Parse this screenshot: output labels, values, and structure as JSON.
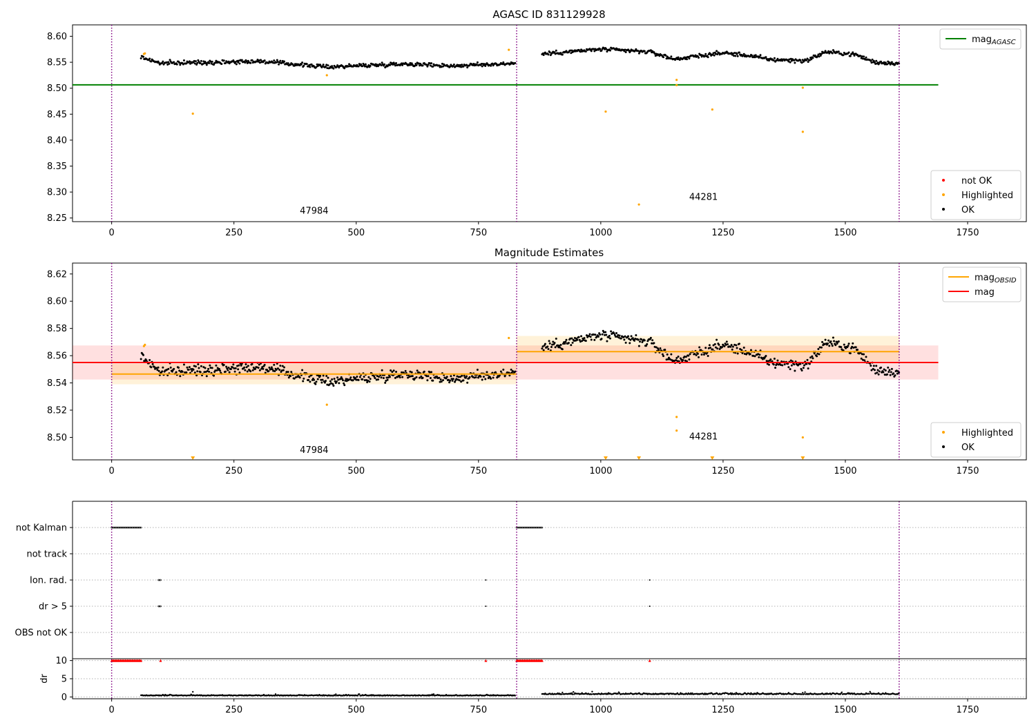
{
  "chart_data": [
    {
      "type": "scatter",
      "title": "AGASC ID 831129928",
      "xlabel": "",
      "ylabel": "",
      "xlim": [
        -80,
        1870
      ],
      "ylim": [
        8.243,
        8.622
      ],
      "xticks": [
        0,
        250,
        500,
        750,
        1000,
        1250,
        1500,
        1750
      ],
      "xtick_labels": [
        "0",
        "250",
        "500",
        "750",
        "1000",
        "1250",
        "1500",
        "1750"
      ],
      "yticks": [
        8.25,
        8.3,
        8.35,
        8.4,
        8.45,
        8.5,
        8.55,
        8.6
      ],
      "ytick_labels": [
        "8.25",
        "8.30",
        "8.35",
        "8.40",
        "8.45",
        "8.50",
        "8.55",
        "8.60"
      ],
      "grid": false,
      "obsid_boundaries": [
        0,
        828,
        1610
      ],
      "obsid_labels": [
        {
          "text": "47984",
          "x": 414,
          "y": 8.258
        },
        {
          "text": "44281",
          "x": 1210,
          "y": 8.285
        }
      ],
      "lines": [
        {
          "name": "mag",
          "name_sub": "AGASC",
          "y": 8.5065,
          "x": [
            -80,
            1690
          ],
          "color": "#008000"
        }
      ],
      "series": [
        {
          "name": "OK",
          "color": "#000000",
          "segments": [
            {
              "x0": 60,
              "x1": 825,
              "step": 1.6,
              "base": 8.548,
              "amp": 0.007,
              "drift": [
                [
                  60,
                  8.56
                ],
                [
                  100,
                  8.548
                ],
                [
                  300,
                  8.552
                ],
                [
                  440,
                  8.541
                ],
                [
                  600,
                  8.547
                ],
                [
                  700,
                  8.543
                ],
                [
                  825,
                  8.548
                ]
              ]
            },
            {
              "x0": 880,
              "x1": 1610,
              "step": 1.6,
              "base": 8.565,
              "amp": 0.007,
              "drift": [
                [
                  880,
                  8.566
                ],
                [
                  1000,
                  8.575
                ],
                [
                  1100,
                  8.57
                ],
                [
                  1150,
                  8.556
                ],
                [
                  1250,
                  8.568
                ],
                [
                  1300,
                  8.563
                ],
                [
                  1350,
                  8.555
                ],
                [
                  1420,
                  8.553
                ],
                [
                  1460,
                  8.57
                ],
                [
                  1520,
                  8.565
                ],
                [
                  1560,
                  8.55
                ],
                [
                  1610,
                  8.548
                ]
              ]
            }
          ]
        },
        {
          "name": "Highlighted",
          "color": "#ffa500",
          "points": [
            [
              66,
              8.566
            ],
            [
              68,
              8.567
            ],
            [
              166,
              8.451
            ],
            [
              440,
              8.525
            ],
            [
              812,
              8.574
            ],
            [
              1010,
              8.455
            ],
            [
              1078,
              8.276
            ],
            [
              1155,
              8.516
            ],
            [
              1155,
              8.506
            ],
            [
              1228,
              8.459
            ],
            [
              1413,
              8.501
            ],
            [
              1413,
              8.416
            ]
          ]
        },
        {
          "name": "not OK",
          "color": "#ff0000",
          "points": []
        }
      ],
      "legends": [
        {
          "position": "upper-right",
          "entries": [
            {
              "kind": "line",
              "label": "mag",
              "sub": "AGASC",
              "color": "#008000"
            }
          ]
        },
        {
          "position": "lower-right",
          "entries": [
            {
              "kind": "dot",
              "label": "not OK",
              "color": "#ff0000"
            },
            {
              "kind": "dot",
              "label": "Highlighted",
              "color": "#ffa500"
            },
            {
              "kind": "dot",
              "label": "OK",
              "color": "#000000"
            }
          ]
        }
      ]
    },
    {
      "type": "scatter",
      "title": "Magnitude Estimates",
      "xlabel": "",
      "ylabel": "",
      "xlim": [
        -80,
        1870
      ],
      "ylim": [
        8.4835,
        8.628
      ],
      "xticks": [
        0,
        250,
        500,
        750,
        1000,
        1250,
        1500,
        1750
      ],
      "xtick_labels": [
        "0",
        "250",
        "500",
        "750",
        "1000",
        "1250",
        "1500",
        "1750"
      ],
      "yticks": [
        8.5,
        8.52,
        8.54,
        8.56,
        8.58,
        8.6,
        8.62
      ],
      "ytick_labels": [
        "8.50",
        "8.52",
        "8.54",
        "8.56",
        "8.58",
        "8.60",
        "8.62"
      ],
      "grid": false,
      "obsid_boundaries": [
        0,
        828,
        1610
      ],
      "obsid_labels": [
        {
          "text": "47984",
          "x": 414,
          "y": 8.4885
        },
        {
          "text": "44281",
          "x": 1210,
          "y": 8.4985
        }
      ],
      "bands": [
        {
          "name": "mag",
          "x": [
            -80,
            1690
          ],
          "y": [
            8.5425,
            8.5675
          ],
          "color": "#ff0000",
          "opacity": 0.12
        },
        {
          "name": "mag_OBSID 47984",
          "x": [
            0,
            828
          ],
          "y": [
            8.539,
            8.554
          ],
          "color": "#ffa500",
          "opacity": 0.15
        },
        {
          "name": "mag_OBSID 44281",
          "x": [
            828,
            1610
          ],
          "y": [
            8.556,
            8.5745
          ],
          "color": "#ffa500",
          "opacity": 0.15
        }
      ],
      "lines": [
        {
          "name": "mag",
          "y": 8.555,
          "x": [
            -80,
            1690
          ],
          "color": "#ff0000"
        },
        {
          "name": "mag",
          "name_sub": "OBSID",
          "y": 8.5465,
          "x": [
            0,
            828
          ],
          "color": "#ffa500"
        },
        {
          "name": "mag",
          "name_sub": "OBSID",
          "y": 8.563,
          "x": [
            828,
            1610
          ],
          "color": "#ffa500"
        }
      ],
      "series": [
        {
          "name": "OK",
          "color": "#000000",
          "segments": [
            {
              "x0": 60,
              "x1": 825,
              "step": 1.6,
              "base": 8.548,
              "amp": 0.007,
              "drift": [
                [
                  60,
                  8.56
                ],
                [
                  100,
                  8.548
                ],
                [
                  300,
                  8.552
                ],
                [
                  440,
                  8.541
                ],
                [
                  600,
                  8.547
                ],
                [
                  700,
                  8.543
                ],
                [
                  825,
                  8.548
                ]
              ]
            },
            {
              "x0": 880,
              "x1": 1610,
              "step": 1.6,
              "base": 8.565,
              "amp": 0.007,
              "drift": [
                [
                  880,
                  8.566
                ],
                [
                  1000,
                  8.575
                ],
                [
                  1100,
                  8.57
                ],
                [
                  1150,
                  8.556
                ],
                [
                  1250,
                  8.568
                ],
                [
                  1300,
                  8.563
                ],
                [
                  1350,
                  8.555
                ],
                [
                  1420,
                  8.553
                ],
                [
                  1460,
                  8.57
                ],
                [
                  1520,
                  8.565
                ],
                [
                  1560,
                  8.55
                ],
                [
                  1610,
                  8.548
                ]
              ]
            }
          ]
        },
        {
          "name": "Highlighted",
          "color": "#ffa500",
          "points": [
            [
              66,
              8.567
            ],
            [
              68,
              8.568
            ],
            [
              440,
              8.524
            ],
            [
              812,
              8.573
            ],
            [
              1155,
              8.515
            ],
            [
              1155,
              8.505
            ],
            [
              1413,
              8.5
            ]
          ]
        },
        {
          "name": "Highlighted (below axis)",
          "color": "#ffa500",
          "marker": "triangle-down",
          "points": [
            [
              166,
              8.4845
            ],
            [
              1010,
              8.4845
            ],
            [
              1078,
              8.4845
            ],
            [
              1228,
              8.4845
            ],
            [
              1413,
              8.4845
            ]
          ]
        }
      ],
      "legends": [
        {
          "position": "upper-right",
          "entries": [
            {
              "kind": "line",
              "label": "mag",
              "sub": "OBSID",
              "color": "#ffa500"
            },
            {
              "kind": "line",
              "label": "mag",
              "sub": "",
              "color": "#ff0000"
            }
          ]
        },
        {
          "position": "lower-right",
          "entries": [
            {
              "kind": "dot",
              "label": "Highlighted",
              "color": "#ffa500"
            },
            {
              "kind": "dot",
              "label": "OK",
              "color": "#000000"
            }
          ]
        }
      ]
    },
    {
      "type": "scatter",
      "title": "",
      "xlabel": "",
      "ylabel": "",
      "xlim": [
        -80,
        1870
      ],
      "flag_rows": [
        "not Kalman",
        "not track",
        "Ion. rad.",
        "dr > 5",
        "OBS not OK"
      ],
      "obsid_boundaries": [
        0,
        828,
        1610
      ],
      "flags": {
        "not Kalman": {
          "ranges": [
            [
              0,
              60
            ],
            [
              828,
              880
            ]
          ],
          "points": []
        },
        "not track": {
          "ranges": [],
          "points": []
        },
        "Ion. rad.": {
          "ranges": [
            [
              96,
              100
            ]
          ],
          "points": [
            765,
            1100
          ]
        },
        "dr > 5": {
          "ranges": [
            [
              96,
              100
            ]
          ],
          "points": [
            765,
            1100
          ]
        },
        "OBS not OK": {
          "ranges": [],
          "points": []
        }
      }
    },
    {
      "type": "scatter",
      "title": "",
      "xlabel": "",
      "ylabel": "dr",
      "xlim": [
        -80,
        1870
      ],
      "ylim": [
        -0.5,
        10.5
      ],
      "yticks": [
        0,
        5,
        10
      ],
      "ytick_labels": [
        "0",
        "5",
        "10"
      ],
      "xticks": [
        0,
        250,
        500,
        750,
        1000,
        1250,
        1500,
        1750
      ],
      "xtick_labels": [
        "0",
        "250",
        "500",
        "750",
        "1000",
        "1250",
        "1500",
        "1750"
      ],
      "grid": true,
      "obsid_boundaries": [
        0,
        828,
        1610
      ],
      "series": [
        {
          "name": "dr",
          "color": "#000000",
          "segments": [
            {
              "x0": 60,
              "x1": 825,
              "step": 1.6,
              "base": 0.35,
              "amp": 0.25
            },
            {
              "x0": 880,
              "x1": 1610,
              "step": 1.6,
              "base": 0.7,
              "amp": 0.5
            }
          ]
        },
        {
          "name": "dr clipped",
          "color": "#ff0000",
          "marker": "triangle-up",
          "ranges": [
            [
              0,
              60
            ],
            [
              828,
              880
            ]
          ],
          "points": [
            [
              100,
              10
            ],
            [
              765,
              10
            ],
            [
              1100,
              10
            ]
          ]
        },
        {
          "name": "dr outlier",
          "color": "#000000",
          "points": [
            [
              166,
              1.4
            ]
          ]
        }
      ]
    }
  ]
}
